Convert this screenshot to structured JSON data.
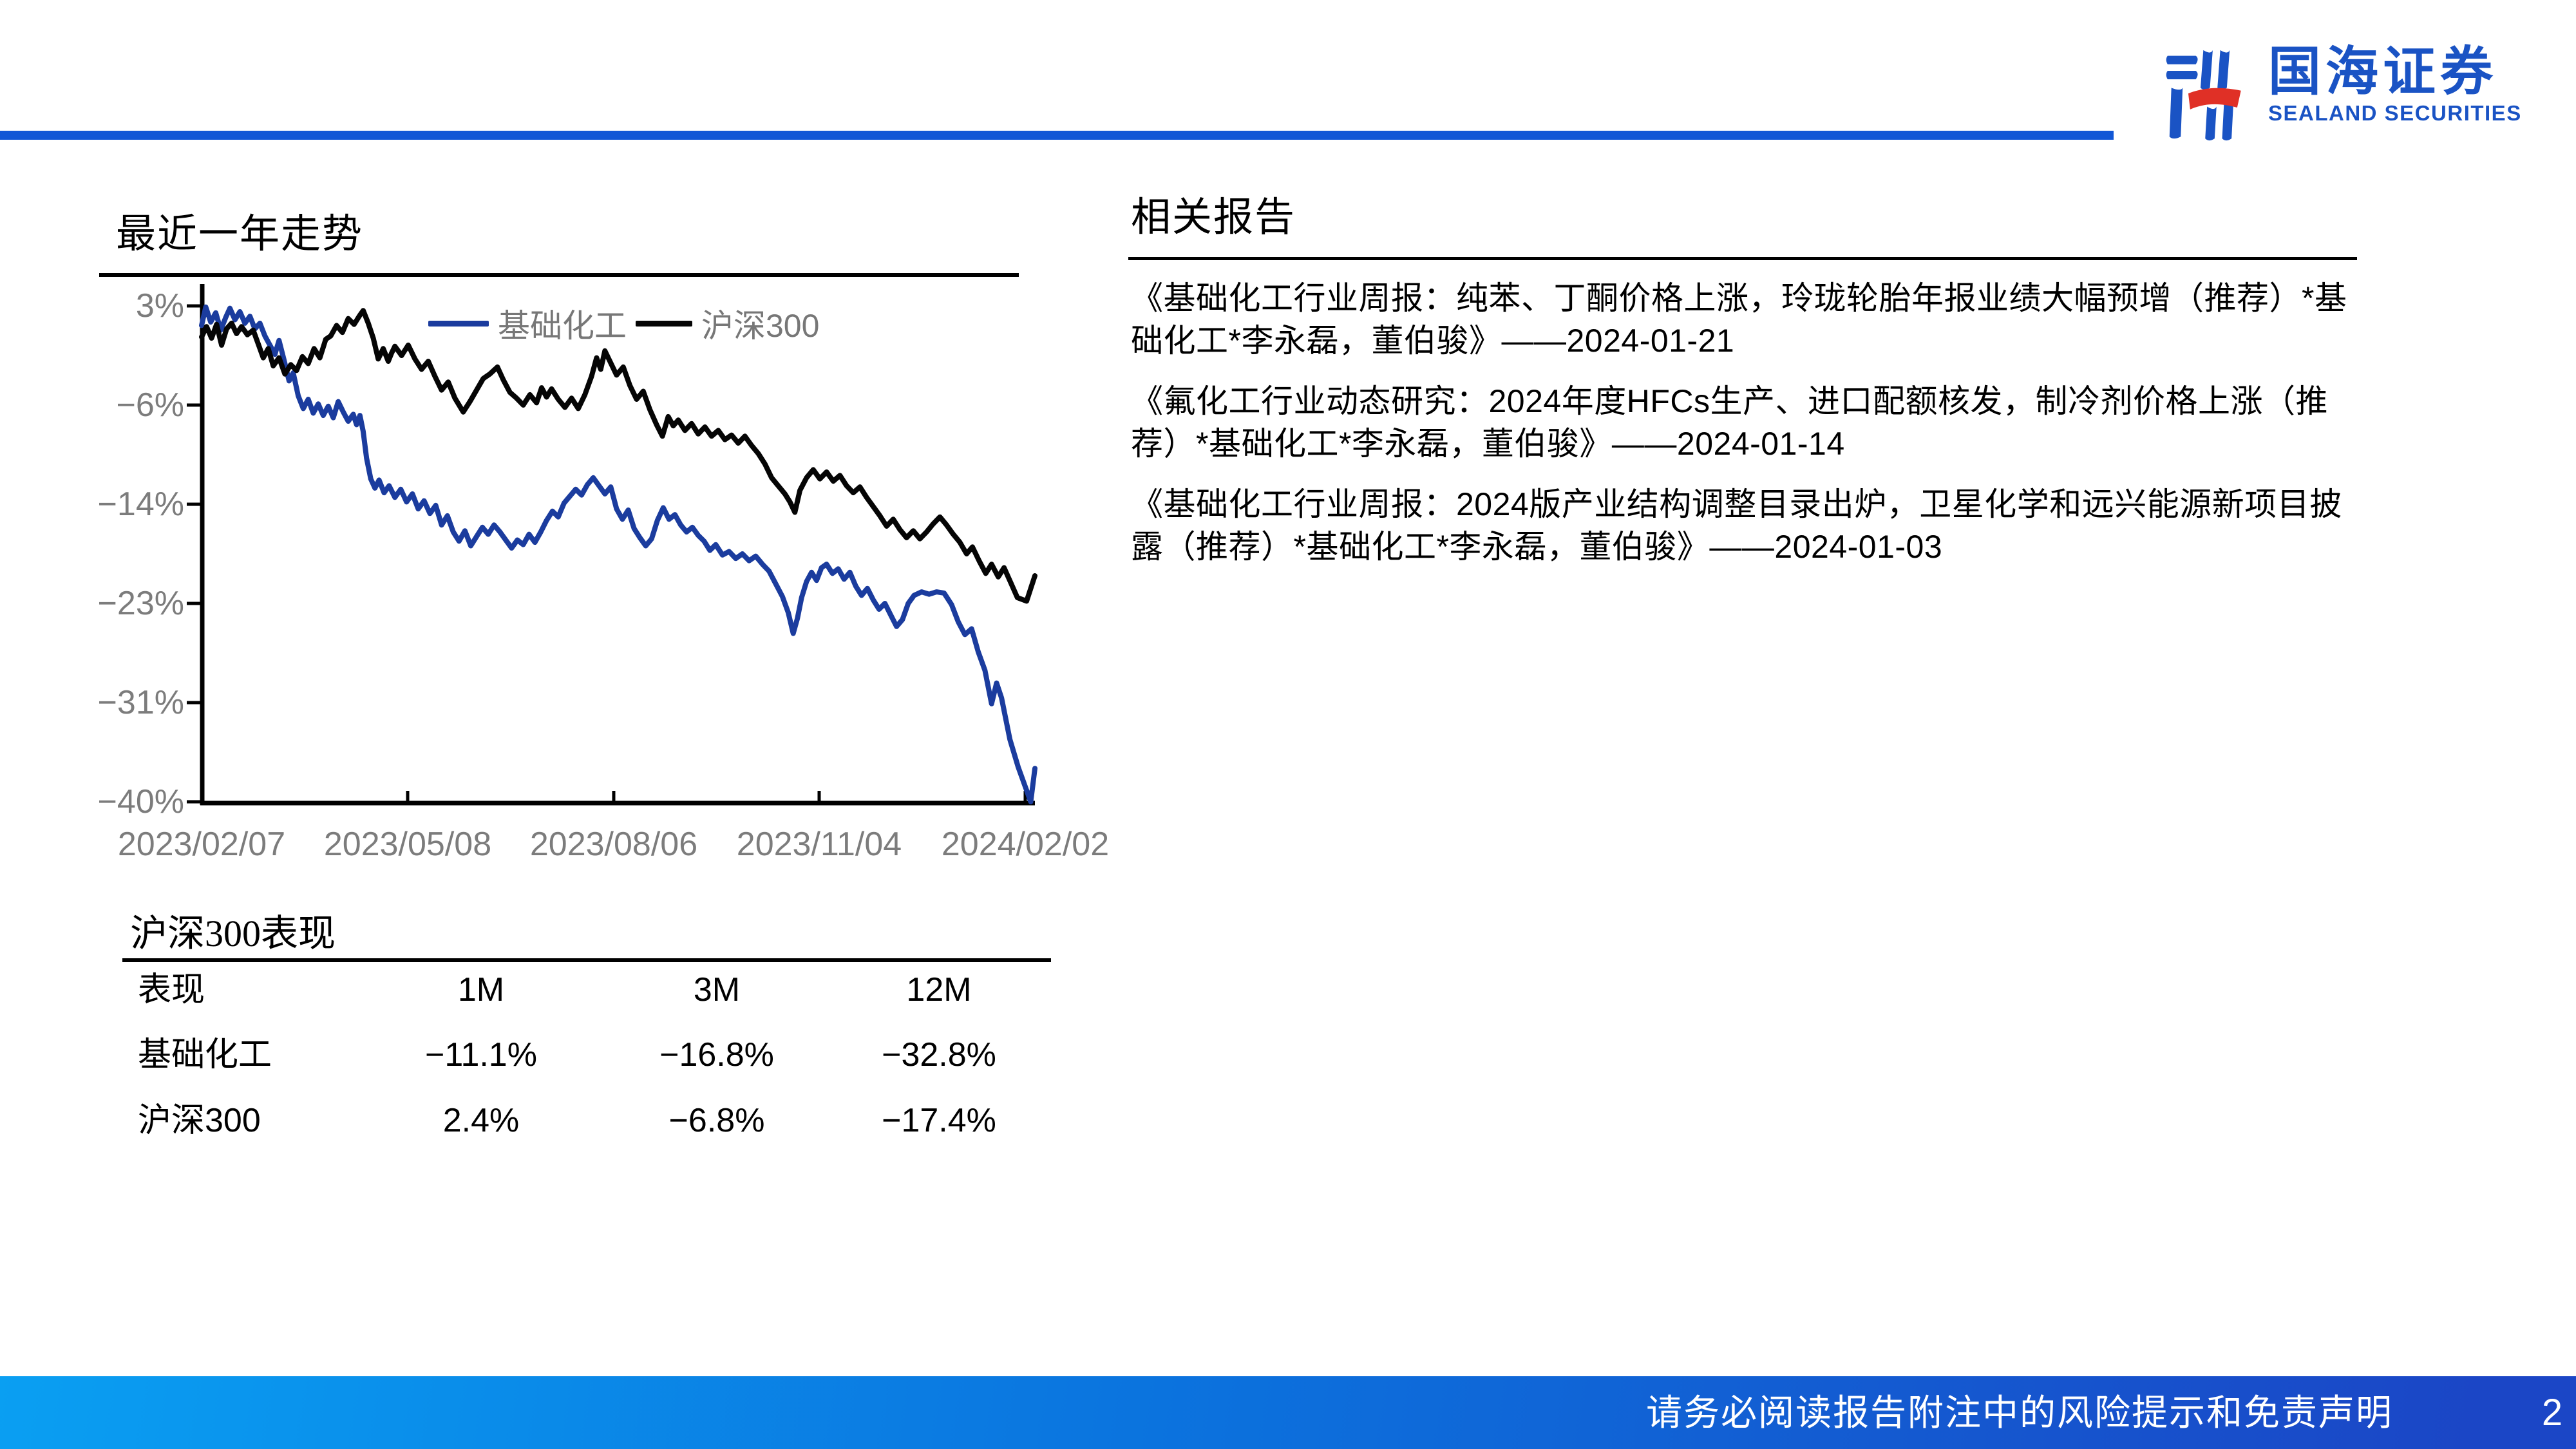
{
  "header": {
    "logo_cn": "国海证券",
    "logo_en": "SEALAND SECURITIES",
    "brand_blue": "#1a53c4",
    "brand_red": "#e03026",
    "rule_color": "#1157d6"
  },
  "left": {
    "section_title": "最近一年走势",
    "table": {
      "title": "沪深300表现",
      "columns": [
        "表现",
        "1M",
        "3M",
        "12M"
      ],
      "rows": [
        {
          "label": "基础化工",
          "m1": "−11.1%",
          "m3": "−16.8%",
          "m12": "−32.8%"
        },
        {
          "label": "沪深300",
          "m1": "2.4%",
          "m3": "−6.8%",
          "m12": "−17.4%"
        }
      ]
    }
  },
  "right": {
    "section_title": "相关报告",
    "reports": [
      "《基础化工行业周报：纯苯、丁酮价格上涨，玲珑轮胎年报业绩大幅预增（推荐）*基础化工*李永磊，董伯骏》——2024-01-21",
      "《氟化工行业动态研究：2024年度HFCs生产、进口配额核发，制冷剂价格上涨（推荐）*基础化工*李永磊，董伯骏》——2024-01-14",
      "《基础化工行业周报：2024版产业结构调整目录出炉，卫星化学和远兴能源新项目披露（推荐）*基础化工*李永磊，董伯骏》——2024-01-03"
    ]
  },
  "footer": {
    "disclaimer": "请务必阅读报告附注中的风险提示和免责声明",
    "page_number": "2"
  },
  "chart_data": {
    "type": "line",
    "title": "最近一年走势",
    "xlabel": "",
    "ylabel": "",
    "ylim": [
      -40,
      3
    ],
    "grid": false,
    "legend_position": "top-center",
    "x_tick_labels": [
      "2023/02/07",
      "2023/05/08",
      "2023/08/06",
      "2023/11/04",
      "2024/02/02"
    ],
    "y_tick_labels": [
      "3%",
      "−6%",
      "−14%",
      "−23%",
      "−31%",
      "−40%"
    ],
    "y_tick_values": [
      3,
      -6,
      -14,
      -23,
      -31,
      -40
    ],
    "axis_color": "#000000",
    "tick_text_color": "#7c7c7c",
    "series": [
      {
        "name": "基础化工",
        "color": "#1b3c9e",
        "points": [
          [
            0.0,
            1.3
          ],
          [
            0.005,
            2.9
          ],
          [
            0.011,
            1.6
          ],
          [
            0.017,
            2.4
          ],
          [
            0.023,
            0.9
          ],
          [
            0.029,
            2.0
          ],
          [
            0.034,
            2.8
          ],
          [
            0.04,
            1.8
          ],
          [
            0.046,
            2.5
          ],
          [
            0.052,
            1.5
          ],
          [
            0.058,
            2.1
          ],
          [
            0.064,
            1.0
          ],
          [
            0.07,
            1.5
          ],
          [
            0.076,
            0.4
          ],
          [
            0.082,
            -0.4
          ],
          [
            0.088,
            -1.2
          ],
          [
            0.093,
            0.0
          ],
          [
            0.099,
            -1.7
          ],
          [
            0.105,
            -3.5
          ],
          [
            0.11,
            -2.8
          ],
          [
            0.116,
            -4.8
          ],
          [
            0.122,
            -5.9
          ],
          [
            0.128,
            -5.1
          ],
          [
            0.134,
            -6.3
          ],
          [
            0.14,
            -5.5
          ],
          [
            0.146,
            -6.5
          ],
          [
            0.152,
            -5.7
          ],
          [
            0.158,
            -6.7
          ],
          [
            0.164,
            -5.3
          ],
          [
            0.17,
            -6.2
          ],
          [
            0.176,
            -7.0
          ],
          [
            0.182,
            -6.4
          ],
          [
            0.186,
            -7.3
          ],
          [
            0.19,
            -6.5
          ],
          [
            0.194,
            -7.9
          ],
          [
            0.198,
            -10.2
          ],
          [
            0.203,
            -12.0
          ],
          [
            0.208,
            -12.8
          ],
          [
            0.213,
            -12.1
          ],
          [
            0.219,
            -13.2
          ],
          [
            0.225,
            -12.6
          ],
          [
            0.232,
            -13.6
          ],
          [
            0.239,
            -12.9
          ],
          [
            0.246,
            -14.0
          ],
          [
            0.253,
            -13.3
          ],
          [
            0.26,
            -14.6
          ],
          [
            0.267,
            -13.9
          ],
          [
            0.274,
            -15.0
          ],
          [
            0.281,
            -14.3
          ],
          [
            0.288,
            -16.0
          ],
          [
            0.295,
            -15.2
          ],
          [
            0.302,
            -16.6
          ],
          [
            0.309,
            -17.4
          ],
          [
            0.316,
            -16.5
          ],
          [
            0.323,
            -17.8
          ],
          [
            0.33,
            -17.0
          ],
          [
            0.337,
            -16.2
          ],
          [
            0.344,
            -16.8
          ],
          [
            0.351,
            -16.0
          ],
          [
            0.358,
            -16.6
          ],
          [
            0.365,
            -17.3
          ],
          [
            0.372,
            -18.0
          ],
          [
            0.379,
            -17.3
          ],
          [
            0.386,
            -17.7
          ],
          [
            0.393,
            -16.8
          ],
          [
            0.4,
            -17.5
          ],
          [
            0.407,
            -16.6
          ],
          [
            0.414,
            -15.6
          ],
          [
            0.421,
            -14.8
          ],
          [
            0.428,
            -15.3
          ],
          [
            0.435,
            -14.1
          ],
          [
            0.442,
            -13.5
          ],
          [
            0.449,
            -12.9
          ],
          [
            0.456,
            -13.4
          ],
          [
            0.463,
            -12.5
          ],
          [
            0.47,
            -11.9
          ],
          [
            0.477,
            -12.6
          ],
          [
            0.484,
            -13.3
          ],
          [
            0.491,
            -12.7
          ],
          [
            0.498,
            -14.6
          ],
          [
            0.505,
            -15.5
          ],
          [
            0.512,
            -14.7
          ],
          [
            0.519,
            -16.3
          ],
          [
            0.526,
            -17.1
          ],
          [
            0.533,
            -17.8
          ],
          [
            0.54,
            -17.2
          ],
          [
            0.547,
            -15.6
          ],
          [
            0.554,
            -14.5
          ],
          [
            0.561,
            -15.5
          ],
          [
            0.568,
            -15.1
          ],
          [
            0.575,
            -16.0
          ],
          [
            0.582,
            -16.6
          ],
          [
            0.589,
            -16.2
          ],
          [
            0.596,
            -16.9
          ],
          [
            0.603,
            -17.4
          ],
          [
            0.61,
            -18.2
          ],
          [
            0.617,
            -17.7
          ],
          [
            0.625,
            -18.6
          ],
          [
            0.633,
            -18.3
          ],
          [
            0.641,
            -18.9
          ],
          [
            0.649,
            -18.5
          ],
          [
            0.657,
            -19.1
          ],
          [
            0.665,
            -18.7
          ],
          [
            0.673,
            -19.4
          ],
          [
            0.681,
            -20.0
          ],
          [
            0.689,
            -21.1
          ],
          [
            0.697,
            -22.2
          ],
          [
            0.704,
            -23.6
          ],
          [
            0.71,
            -25.4
          ],
          [
            0.715,
            -24.1
          ],
          [
            0.72,
            -22.3
          ],
          [
            0.726,
            -20.9
          ],
          [
            0.732,
            -20.1
          ],
          [
            0.738,
            -20.8
          ],
          [
            0.744,
            -19.7
          ],
          [
            0.75,
            -19.4
          ],
          [
            0.757,
            -20.2
          ],
          [
            0.764,
            -19.8
          ],
          [
            0.771,
            -20.7
          ],
          [
            0.778,
            -20.1
          ],
          [
            0.785,
            -21.3
          ],
          [
            0.792,
            -22.1
          ],
          [
            0.799,
            -21.5
          ],
          [
            0.806,
            -22.5
          ],
          [
            0.813,
            -23.3
          ],
          [
            0.82,
            -22.8
          ],
          [
            0.827,
            -23.8
          ],
          [
            0.834,
            -24.8
          ],
          [
            0.841,
            -24.2
          ],
          [
            0.848,
            -22.8
          ],
          [
            0.855,
            -22.1
          ],
          [
            0.864,
            -21.8
          ],
          [
            0.873,
            -22.0
          ],
          [
            0.882,
            -21.8
          ],
          [
            0.891,
            -21.9
          ],
          [
            0.9,
            -22.9
          ],
          [
            0.908,
            -24.4
          ],
          [
            0.916,
            -25.5
          ],
          [
            0.924,
            -25.0
          ],
          [
            0.932,
            -27.0
          ],
          [
            0.94,
            -28.6
          ],
          [
            0.948,
            -31.5
          ],
          [
            0.954,
            -29.7
          ],
          [
            0.96,
            -31.0
          ],
          [
            0.97,
            -34.6
          ],
          [
            0.98,
            -37.0
          ],
          [
            0.995,
            -40.0
          ],
          [
            1.0,
            -37.1
          ]
        ]
      },
      {
        "name": "沪深300",
        "color": "#050505",
        "points": [
          [
            0.0,
            0.3
          ],
          [
            0.006,
            1.2
          ],
          [
            0.012,
            0.2
          ],
          [
            0.018,
            1.4
          ],
          [
            0.024,
            -0.4
          ],
          [
            0.03,
            1.0
          ],
          [
            0.036,
            1.5
          ],
          [
            0.042,
            0.6
          ],
          [
            0.048,
            1.2
          ],
          [
            0.055,
            0.5
          ],
          [
            0.062,
            0.9
          ],
          [
            0.068,
            -0.3
          ],
          [
            0.074,
            -1.5
          ],
          [
            0.08,
            -0.7
          ],
          [
            0.086,
            -2.2
          ],
          [
            0.093,
            -1.5
          ],
          [
            0.1,
            -2.9
          ],
          [
            0.107,
            -2.1
          ],
          [
            0.114,
            -2.6
          ],
          [
            0.121,
            -1.4
          ],
          [
            0.128,
            -2.0
          ],
          [
            0.135,
            -0.7
          ],
          [
            0.142,
            -1.5
          ],
          [
            0.149,
            0.1
          ],
          [
            0.155,
            0.4
          ],
          [
            0.162,
            1.3
          ],
          [
            0.169,
            0.7
          ],
          [
            0.176,
            1.9
          ],
          [
            0.183,
            1.4
          ],
          [
            0.19,
            2.2
          ],
          [
            0.194,
            2.6
          ],
          [
            0.2,
            1.5
          ],
          [
            0.206,
            0.2
          ],
          [
            0.212,
            -1.6
          ],
          [
            0.218,
            -0.7
          ],
          [
            0.224,
            -1.8
          ],
          [
            0.228,
            -1.1
          ],
          [
            0.232,
            -0.5
          ],
          [
            0.24,
            -1.3
          ],
          [
            0.248,
            -0.4
          ],
          [
            0.256,
            -1.6
          ],
          [
            0.264,
            -2.5
          ],
          [
            0.272,
            -1.8
          ],
          [
            0.28,
            -3.1
          ],
          [
            0.288,
            -4.3
          ],
          [
            0.296,
            -3.6
          ],
          [
            0.304,
            -5.0
          ],
          [
            0.314,
            -6.2
          ],
          [
            0.322,
            -5.3
          ],
          [
            0.33,
            -4.3
          ],
          [
            0.338,
            -3.3
          ],
          [
            0.346,
            -2.9
          ],
          [
            0.355,
            -2.3
          ],
          [
            0.362,
            -3.4
          ],
          [
            0.37,
            -4.5
          ],
          [
            0.378,
            -5.0
          ],
          [
            0.386,
            -5.6
          ],
          [
            0.394,
            -4.7
          ],
          [
            0.402,
            -5.4
          ],
          [
            0.408,
            -4.1
          ],
          [
            0.414,
            -4.9
          ],
          [
            0.42,
            -4.2
          ],
          [
            0.428,
            -5.1
          ],
          [
            0.436,
            -5.8
          ],
          [
            0.444,
            -5.0
          ],
          [
            0.452,
            -5.9
          ],
          [
            0.46,
            -4.7
          ],
          [
            0.468,
            -3.1
          ],
          [
            0.474,
            -1.5
          ],
          [
            0.479,
            -2.5
          ],
          [
            0.484,
            -0.9
          ],
          [
            0.49,
            -1.8
          ],
          [
            0.498,
            -3.0
          ],
          [
            0.506,
            -2.3
          ],
          [
            0.514,
            -3.9
          ],
          [
            0.522,
            -5.1
          ],
          [
            0.53,
            -4.4
          ],
          [
            0.538,
            -6.0
          ],
          [
            0.546,
            -7.3
          ],
          [
            0.553,
            -8.3
          ],
          [
            0.56,
            -6.6
          ],
          [
            0.566,
            -7.4
          ],
          [
            0.572,
            -6.9
          ],
          [
            0.58,
            -7.8
          ],
          [
            0.588,
            -7.2
          ],
          [
            0.596,
            -8.1
          ],
          [
            0.604,
            -7.5
          ],
          [
            0.612,
            -8.3
          ],
          [
            0.62,
            -7.8
          ],
          [
            0.628,
            -8.6
          ],
          [
            0.636,
            -8.2
          ],
          [
            0.644,
            -8.9
          ],
          [
            0.652,
            -8.3
          ],
          [
            0.66,
            -9.1
          ],
          [
            0.668,
            -9.8
          ],
          [
            0.676,
            -10.7
          ],
          [
            0.684,
            -11.9
          ],
          [
            0.692,
            -12.6
          ],
          [
            0.7,
            -13.3
          ],
          [
            0.706,
            -14.0
          ],
          [
            0.712,
            -14.9
          ],
          [
            0.718,
            -13.0
          ],
          [
            0.726,
            -11.9
          ],
          [
            0.734,
            -11.2
          ],
          [
            0.742,
            -12.0
          ],
          [
            0.75,
            -11.4
          ],
          [
            0.758,
            -12.2
          ],
          [
            0.766,
            -11.7
          ],
          [
            0.774,
            -12.6
          ],
          [
            0.782,
            -13.2
          ],
          [
            0.79,
            -12.7
          ],
          [
            0.798,
            -13.6
          ],
          [
            0.806,
            -14.4
          ],
          [
            0.814,
            -15.2
          ],
          [
            0.822,
            -16.1
          ],
          [
            0.83,
            -15.5
          ],
          [
            0.838,
            -16.4
          ],
          [
            0.846,
            -17.1
          ],
          [
            0.854,
            -16.5
          ],
          [
            0.862,
            -17.2
          ],
          [
            0.87,
            -16.6
          ],
          [
            0.878,
            -15.9
          ],
          [
            0.886,
            -15.3
          ],
          [
            0.894,
            -16.0
          ],
          [
            0.902,
            -16.8
          ],
          [
            0.91,
            -17.5
          ],
          [
            0.918,
            -18.5
          ],
          [
            0.925,
            -17.9
          ],
          [
            0.933,
            -19.1
          ],
          [
            0.941,
            -20.2
          ],
          [
            0.948,
            -19.4
          ],
          [
            0.956,
            -20.5
          ],
          [
            0.963,
            -19.7
          ],
          [
            0.971,
            -21.0
          ],
          [
            0.979,
            -22.3
          ],
          [
            0.99,
            -22.6
          ],
          [
            1.0,
            -20.4
          ]
        ]
      }
    ]
  }
}
